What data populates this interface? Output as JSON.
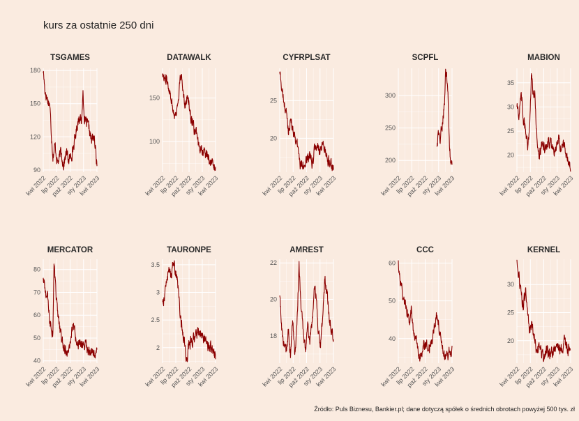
{
  "title": "kurs za ostatnie 250 dni",
  "caption": "Źródło: Puls Biznesu, Bankier.pl; dane dotyczą spółek o średnich obrotach powyżej 500 tys. zł",
  "colors": {
    "background": "#faebe0",
    "line": "#8b0000",
    "grid": "#ffffff"
  },
  "chart_data": {
    "type": "line",
    "x_tick_labels": [
      "kwi 2022",
      "lip 2022",
      "paź 2022",
      "sty 2023",
      "kwi 2023"
    ],
    "facets": [
      {
        "name": "TSGAMES",
        "ylim": [
          88,
          182
        ],
        "yticks": [
          90,
          120,
          150,
          180
        ],
        "x_start": 0.0,
        "trend": [
          [
            0,
            180
          ],
          [
            0.03,
            163
          ],
          [
            0.07,
            155
          ],
          [
            0.12,
            150
          ],
          [
            0.15,
            125
          ],
          [
            0.18,
            103
          ],
          [
            0.22,
            112
          ],
          [
            0.27,
            96
          ],
          [
            0.33,
            106
          ],
          [
            0.38,
            95
          ],
          [
            0.43,
            106
          ],
          [
            0.48,
            98
          ],
          [
            0.53,
            105
          ],
          [
            0.58,
            115
          ],
          [
            0.63,
            130
          ],
          [
            0.67,
            140
          ],
          [
            0.71,
            132
          ],
          [
            0.74,
            160
          ],
          [
            0.77,
            134
          ],
          [
            0.81,
            132
          ],
          [
            0.86,
            126
          ],
          [
            0.9,
            115
          ],
          [
            0.93,
            122
          ],
          [
            0.96,
            114
          ],
          [
            1,
            94
          ]
        ]
      },
      {
        "name": "DATAWALK",
        "ylim": [
          65,
          184
        ],
        "yticks": [
          100,
          150
        ],
        "x_start": 0.0,
        "trend": [
          [
            0,
            180
          ],
          [
            0.05,
            172
          ],
          [
            0.1,
            168
          ],
          [
            0.15,
            155
          ],
          [
            0.2,
            135
          ],
          [
            0.25,
            130
          ],
          [
            0.3,
            150
          ],
          [
            0.34,
            175
          ],
          [
            0.38,
            163
          ],
          [
            0.43,
            143
          ],
          [
            0.48,
            152
          ],
          [
            0.53,
            130
          ],
          [
            0.58,
            116
          ],
          [
            0.63,
            110
          ],
          [
            0.68,
            92
          ],
          [
            0.73,
            97
          ],
          [
            0.78,
            85
          ],
          [
            0.84,
            88
          ],
          [
            0.9,
            78
          ],
          [
            0.95,
            73
          ],
          [
            1,
            70
          ]
        ]
      },
      {
        "name": "CYFRPLSAT",
        "ylim": [
          15.5,
          29.3
        ],
        "yticks": [
          20,
          25
        ],
        "x_start": 0.0,
        "trend": [
          [
            0,
            29
          ],
          [
            0.04,
            26.5
          ],
          [
            0.08,
            24.5
          ],
          [
            0.12,
            23.5
          ],
          [
            0.16,
            21
          ],
          [
            0.2,
            22.5
          ],
          [
            0.25,
            21
          ],
          [
            0.3,
            20
          ],
          [
            0.35,
            18.2
          ],
          [
            0.38,
            16.4
          ],
          [
            0.42,
            17.2
          ],
          [
            0.46,
            16.2
          ],
          [
            0.5,
            17
          ],
          [
            0.55,
            17.8
          ],
          [
            0.6,
            16.2
          ],
          [
            0.65,
            18.6
          ],
          [
            0.7,
            19
          ],
          [
            0.75,
            18
          ],
          [
            0.8,
            18.7
          ],
          [
            0.85,
            18.6
          ],
          [
            0.9,
            17.1
          ],
          [
            0.95,
            17
          ],
          [
            1,
            16
          ]
        ]
      },
      {
        "name": "SCPFL",
        "ylim": [
          182,
          342
        ],
        "yticks": [
          200,
          250,
          300
        ],
        "x_start": 0.72,
        "trend": [
          [
            0,
            222
          ],
          [
            0.08,
            238
          ],
          [
            0.15,
            240
          ],
          [
            0.22,
            228
          ],
          [
            0.3,
            248
          ],
          [
            0.38,
            262
          ],
          [
            0.45,
            280
          ],
          [
            0.52,
            300
          ],
          [
            0.58,
            340
          ],
          [
            0.66,
            322
          ],
          [
            0.74,
            300
          ],
          [
            0.82,
            230
          ],
          [
            0.9,
            195
          ],
          [
            1,
            190
          ]
        ]
      },
      {
        "name": "MABION",
        "ylim": [
          16.5,
          38
        ],
        "yticks": [
          20,
          25,
          30,
          35
        ],
        "x_start": 0.0,
        "trend": [
          [
            0,
            30
          ],
          [
            0.04,
            28
          ],
          [
            0.08,
            34
          ],
          [
            0.12,
            27
          ],
          [
            0.16,
            26
          ],
          [
            0.2,
            21
          ],
          [
            0.24,
            27
          ],
          [
            0.27,
            37.5
          ],
          [
            0.3,
            32
          ],
          [
            0.33,
            33
          ],
          [
            0.37,
            24
          ],
          [
            0.42,
            20
          ],
          [
            0.47,
            23
          ],
          [
            0.52,
            21.5
          ],
          [
            0.57,
            22
          ],
          [
            0.62,
            23
          ],
          [
            0.67,
            22
          ],
          [
            0.72,
            21
          ],
          [
            0.77,
            24
          ],
          [
            0.82,
            21.5
          ],
          [
            0.87,
            23
          ],
          [
            0.92,
            20.5
          ],
          [
            0.96,
            18
          ],
          [
            1,
            17.5
          ]
        ]
      },
      {
        "name": "MERCATOR",
        "ylim": [
          39,
          84.5
        ],
        "yticks": [
          40,
          50,
          60,
          70,
          80
        ],
        "x_start": 0.0,
        "trend": [
          [
            0,
            76
          ],
          [
            0.04,
            70
          ],
          [
            0.08,
            68
          ],
          [
            0.12,
            57
          ],
          [
            0.15,
            55
          ],
          [
            0.18,
            52
          ],
          [
            0.2,
            83
          ],
          [
            0.24,
            68
          ],
          [
            0.28,
            58
          ],
          [
            0.32,
            52
          ],
          [
            0.36,
            48
          ],
          [
            0.4,
            45
          ],
          [
            0.44,
            43
          ],
          [
            0.48,
            47
          ],
          [
            0.52,
            52
          ],
          [
            0.55,
            55
          ],
          [
            0.6,
            50
          ],
          [
            0.65,
            48
          ],
          [
            0.7,
            46
          ],
          [
            0.75,
            47
          ],
          [
            0.8,
            46
          ],
          [
            0.85,
            44
          ],
          [
            0.9,
            45
          ],
          [
            0.95,
            43
          ],
          [
            1,
            43
          ]
        ]
      },
      {
        "name": "TAURONPE",
        "ylim": [
          1.72,
          3.6
        ],
        "yticks": [
          2.0,
          2.5,
          3.0,
          3.5
        ],
        "x_start": 0.0,
        "trend": [
          [
            0,
            2.8
          ],
          [
            0.04,
            2.95
          ],
          [
            0.08,
            3.25
          ],
          [
            0.12,
            3.4
          ],
          [
            0.16,
            3.3
          ],
          [
            0.2,
            3.55
          ],
          [
            0.25,
            3.35
          ],
          [
            0.3,
            3.05
          ],
          [
            0.33,
            2.6
          ],
          [
            0.37,
            2.35
          ],
          [
            0.41,
            2.15
          ],
          [
            0.45,
            1.78
          ],
          [
            0.5,
            2.05
          ],
          [
            0.55,
            2.1
          ],
          [
            0.6,
            2.15
          ],
          [
            0.65,
            2.25
          ],
          [
            0.7,
            2.3
          ],
          [
            0.75,
            2.2
          ],
          [
            0.8,
            2.15
          ],
          [
            0.85,
            2.05
          ],
          [
            0.9,
            2.0
          ],
          [
            0.95,
            1.92
          ],
          [
            1,
            1.85
          ]
        ]
      },
      {
        "name": "AMREST",
        "ylim": [
          16.5,
          22.2
        ],
        "yticks": [
          18,
          20,
          22
        ],
        "x_start": 0.0,
        "trend": [
          [
            0,
            20.1
          ],
          [
            0.04,
            18.3
          ],
          [
            0.08,
            17.5
          ],
          [
            0.12,
            17.1
          ],
          [
            0.16,
            18.2
          ],
          [
            0.2,
            16.8
          ],
          [
            0.24,
            19
          ],
          [
            0.28,
            17
          ],
          [
            0.32,
            18.5
          ],
          [
            0.36,
            21.9
          ],
          [
            0.4,
            19.5
          ],
          [
            0.44,
            18
          ],
          [
            0.48,
            17.2
          ],
          [
            0.52,
            18.5
          ],
          [
            0.56,
            17.5
          ],
          [
            0.6,
            18.5
          ],
          [
            0.64,
            20.5
          ],
          [
            0.68,
            20.1
          ],
          [
            0.72,
            18
          ],
          [
            0.76,
            17.5
          ],
          [
            0.8,
            18.8
          ],
          [
            0.84,
            21
          ],
          [
            0.88,
            20.5
          ],
          [
            0.92,
            19
          ],
          [
            0.96,
            18.5
          ],
          [
            1,
            18
          ]
        ]
      },
      {
        "name": "CCC",
        "ylim": [
          33.5,
          61
        ],
        "yticks": [
          40,
          50,
          60
        ],
        "x_start": 0.0,
        "trend": [
          [
            0,
            60
          ],
          [
            0.04,
            55
          ],
          [
            0.08,
            52
          ],
          [
            0.12,
            50
          ],
          [
            0.16,
            47
          ],
          [
            0.2,
            44
          ],
          [
            0.24,
            48
          ],
          [
            0.28,
            42
          ],
          [
            0.32,
            41
          ],
          [
            0.36,
            37
          ],
          [
            0.4,
            35
          ],
          [
            0.44,
            36
          ],
          [
            0.48,
            38
          ],
          [
            0.52,
            39
          ],
          [
            0.56,
            37
          ],
          [
            0.6,
            38
          ],
          [
            0.64,
            41
          ],
          [
            0.68,
            44
          ],
          [
            0.72,
            47
          ],
          [
            0.76,
            43
          ],
          [
            0.8,
            39
          ],
          [
            0.84,
            37
          ],
          [
            0.88,
            35
          ],
          [
            0.92,
            36
          ],
          [
            0.96,
            37
          ],
          [
            1,
            36.5
          ]
        ]
      },
      {
        "name": "KERNEL",
        "ylim": [
          16,
          34.5
        ],
        "yticks": [
          20,
          25,
          30
        ],
        "x_start": 0.0,
        "trend": [
          [
            0,
            34
          ],
          [
            0.04,
            31
          ],
          [
            0.08,
            28
          ],
          [
            0.12,
            26
          ],
          [
            0.16,
            29
          ],
          [
            0.2,
            25
          ],
          [
            0.24,
            22
          ],
          [
            0.28,
            23
          ],
          [
            0.32,
            21
          ],
          [
            0.36,
            18.5
          ],
          [
            0.4,
            18.8
          ],
          [
            0.44,
            18
          ],
          [
            0.48,
            17
          ],
          [
            0.52,
            17.5
          ],
          [
            0.56,
            18.5
          ],
          [
            0.6,
            17.5
          ],
          [
            0.64,
            18
          ],
          [
            0.68,
            18.5
          ],
          [
            0.72,
            18
          ],
          [
            0.76,
            19
          ],
          [
            0.8,
            18.5
          ],
          [
            0.84,
            18.5
          ],
          [
            0.88,
            20
          ],
          [
            0.92,
            19
          ],
          [
            0.96,
            18.5
          ],
          [
            1,
            18.5
          ]
        ]
      }
    ]
  }
}
